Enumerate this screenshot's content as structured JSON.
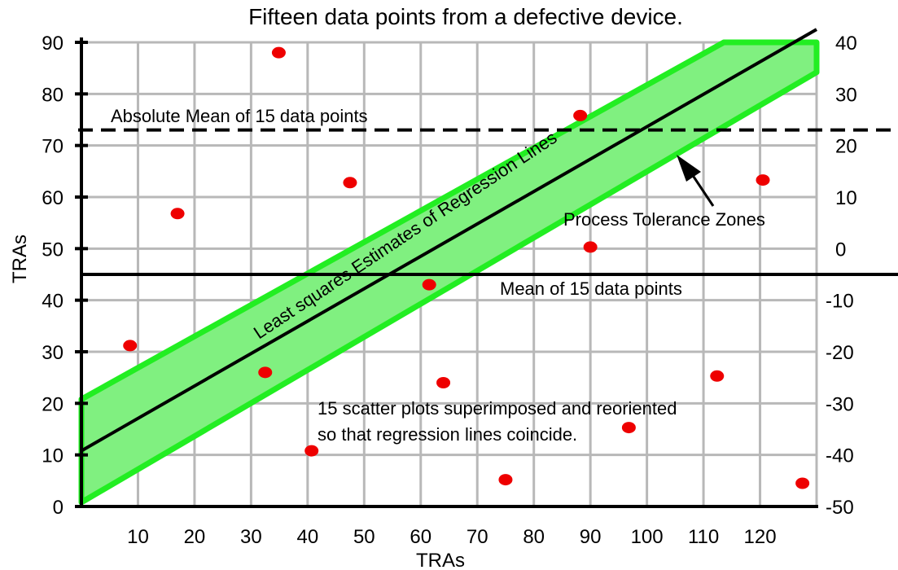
{
  "chart_data": {
    "type": "scatter",
    "title": "Fifteen data points from a defective device.",
    "xlabel": "TRAs",
    "ylabel": "TRAs",
    "xlim": [
      0,
      130
    ],
    "ylim": [
      0,
      90
    ],
    "y2lim": [
      -50,
      40
    ],
    "grid": true,
    "x_ticks": [
      10,
      20,
      30,
      40,
      50,
      60,
      70,
      80,
      90,
      100,
      110,
      120
    ],
    "x_tick_labels": [
      "10",
      "20",
      "30",
      "40",
      "50",
      "60",
      "70",
      "80",
      "90",
      "100",
      "110",
      "120"
    ],
    "y_ticks": [
      0,
      10,
      20,
      30,
      40,
      50,
      60,
      70,
      80,
      90
    ],
    "y_tick_labels": [
      "0",
      "10",
      "20",
      "30",
      "40",
      "50",
      "60",
      "70",
      "80",
      "90"
    ],
    "y2_ticks": [
      -50,
      -40,
      -30,
      -20,
      -10,
      0,
      10,
      20,
      30,
      40
    ],
    "y2_tick_labels": [
      "-50",
      "-40",
      "-30",
      "-20",
      "-10",
      "0",
      "10",
      "20",
      "30",
      "40"
    ],
    "points": [
      {
        "x": 8.6,
        "y": 31.2
      },
      {
        "x": 17.0,
        "y": 56.8
      },
      {
        "x": 32.5,
        "y": 26.0
      },
      {
        "x": 34.9,
        "y": 88.0
      },
      {
        "x": 40.7,
        "y": 10.8
      },
      {
        "x": 47.5,
        "y": 62.8
      },
      {
        "x": 61.5,
        "y": 43.0
      },
      {
        "x": 64.0,
        "y": 24.0
      },
      {
        "x": 75.0,
        "y": 5.2
      },
      {
        "x": 88.2,
        "y": 75.8
      },
      {
        "x": 90.0,
        "y": 50.3
      },
      {
        "x": 96.8,
        "y": 15.3
      },
      {
        "x": 112.4,
        "y": 25.3
      },
      {
        "x": 120.5,
        "y": 63.3
      },
      {
        "x": 127.5,
        "y": 4.5
      }
    ],
    "regression_line": {
      "x": [
        0,
        130
      ],
      "y": [
        10.8,
        92.5
      ]
    },
    "tolerance_band": {
      "upper": {
        "x": [
          0,
          130
        ],
        "y": [
          20.8,
          100.0
        ]
      },
      "lower": {
        "x": [
          0,
          130
        ],
        "y": [
          0.8,
          84.2
        ]
      },
      "clip_ymax": 90,
      "color": "#33ff33"
    },
    "mean_line": {
      "y": 45.0,
      "label": "Mean of 15 data points"
    },
    "absolute_mean_line": {
      "y": 73.0,
      "label": "Absolute Mean of 15 data points"
    },
    "annotations": {
      "regression_label": "Least squares Estimates of Regression Lines",
      "tolerance_label": "Process Tolerance Zones",
      "note_line1": "15 scatter plots superimposed and reoriented",
      "note_line2": "so that regression lines coincide."
    },
    "colors": {
      "points": "#ee0000",
      "grid": "#b8b8b8",
      "band_fill": "#80f080",
      "band_edge": "#22ee22",
      "lines": "#000000"
    }
  }
}
